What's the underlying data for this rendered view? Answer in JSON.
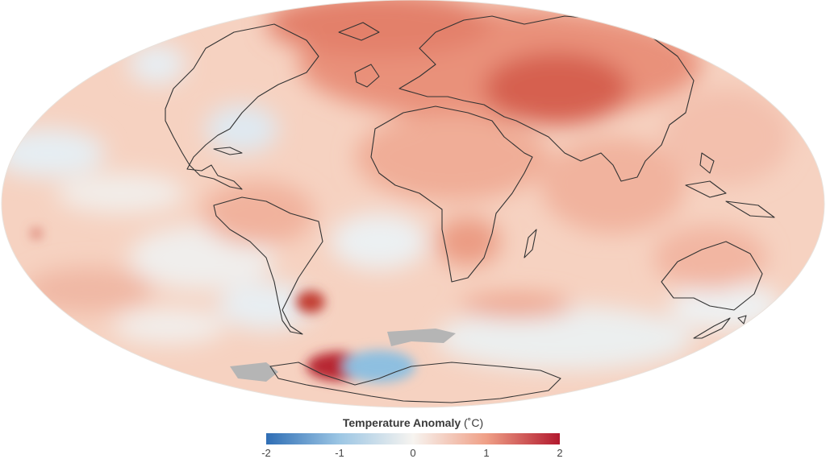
{
  "legend": {
    "title": "Temperature Anomaly",
    "unit": "(˚C)",
    "ticks": [
      "-2",
      "-1",
      "0",
      "1",
      "2"
    ],
    "range": [
      -2,
      2
    ],
    "colors": {
      "min": "#2f6eb5",
      "low": "#9cc6e4",
      "zero": "#f7f4f0",
      "high": "#ef9f86",
      "max": "#b2192e"
    }
  },
  "map": {
    "projection": "mollweide",
    "no_data_color": "#b5b5b5",
    "coastline_color": "#333333"
  }
}
